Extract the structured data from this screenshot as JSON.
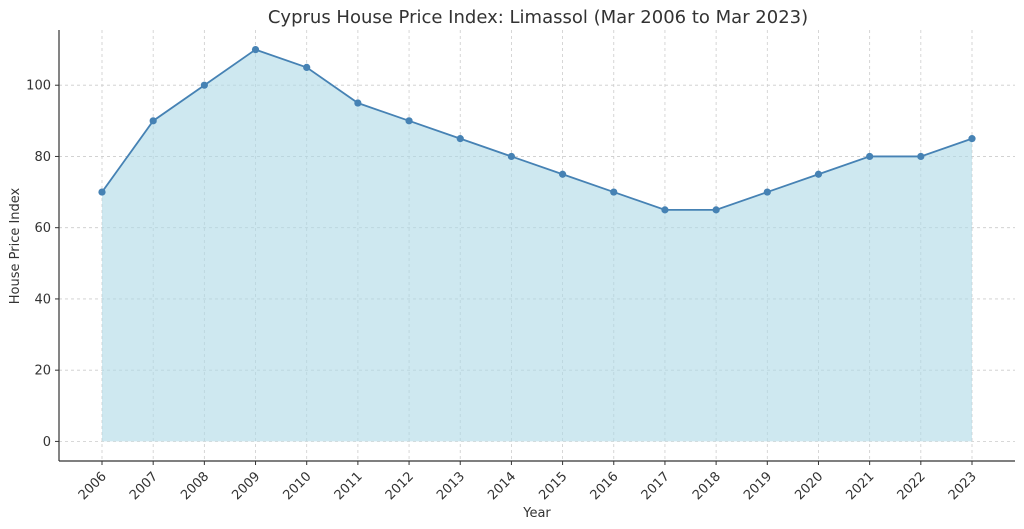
{
  "chart_data": {
    "type": "area",
    "title": "Cyprus House Price Index: Limassol (Mar 2006 to Mar 2023)",
    "xlabel": "Year",
    "ylabel": "House Price Index",
    "categories": [
      "2006",
      "2007",
      "2008",
      "2009",
      "2010",
      "2011",
      "2012",
      "2013",
      "2014",
      "2015",
      "2016",
      "2017",
      "2018",
      "2019",
      "2020",
      "2021",
      "2022",
      "2023"
    ],
    "values": [
      70,
      90,
      100,
      110,
      105,
      95,
      90,
      85,
      80,
      75,
      70,
      65,
      65,
      70,
      75,
      80,
      80,
      85
    ],
    "yticks": [
      0,
      20,
      40,
      60,
      80,
      100
    ],
    "ylim": [
      -5.5,
      115.5
    ],
    "grid": true,
    "colors": {
      "line": "#4682b4",
      "fill": "#add8e6"
    }
  }
}
